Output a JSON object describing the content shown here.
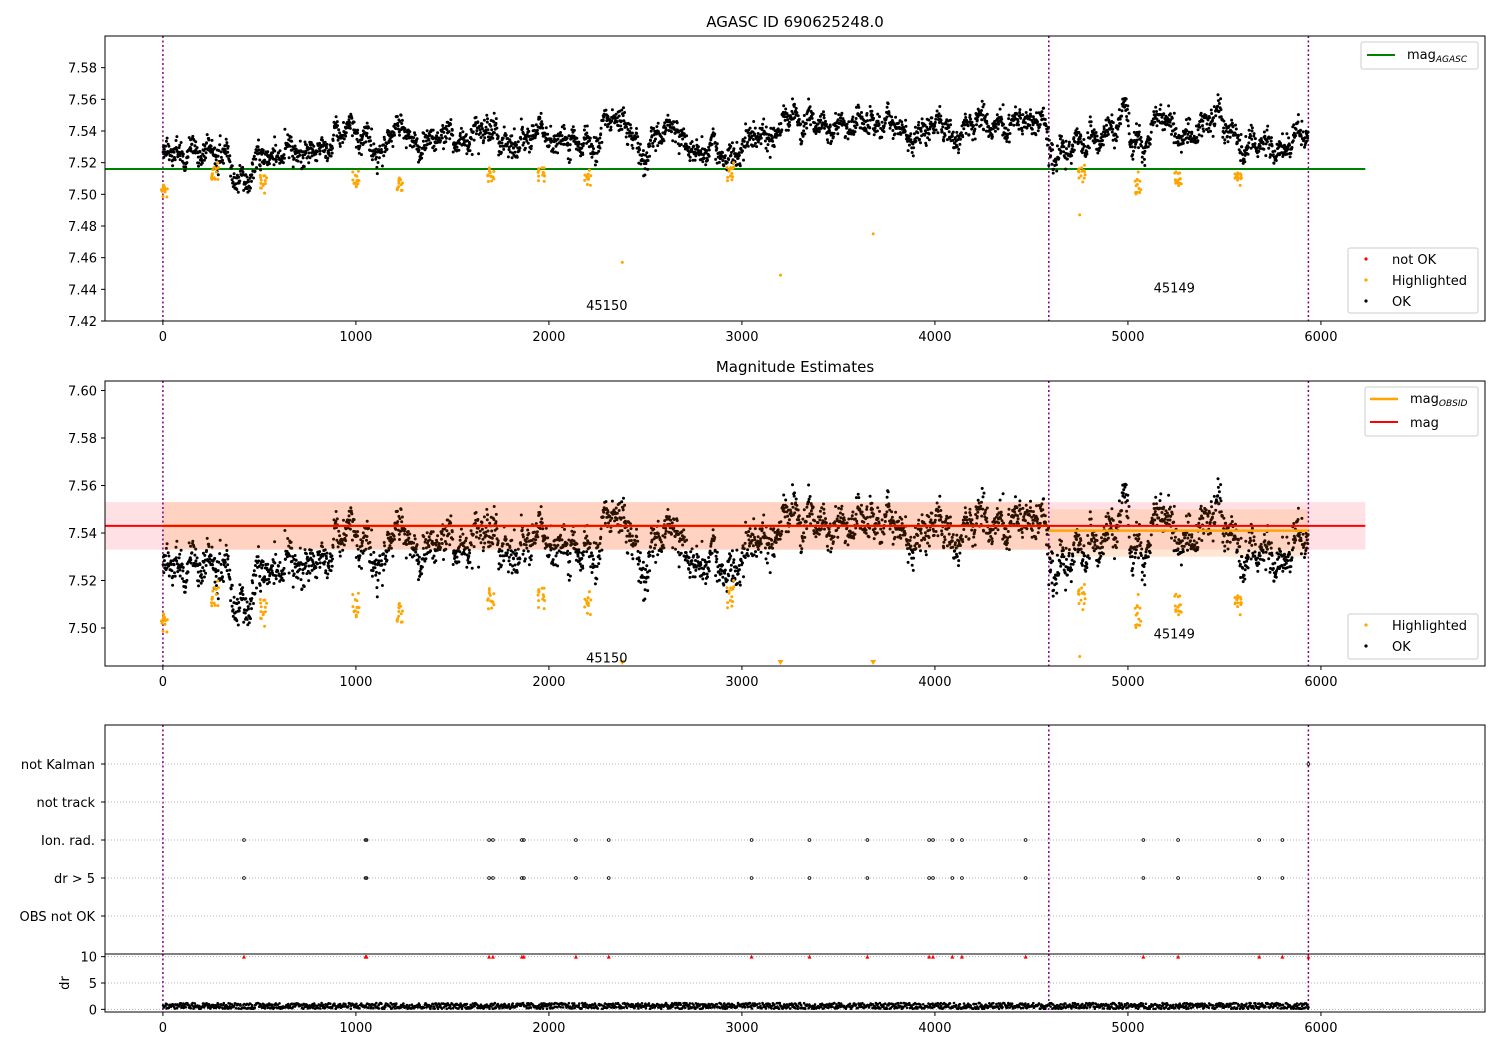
{
  "chart_data": [
    {
      "type": "scatter",
      "title": "AGASC ID 690625248.0",
      "xlabel": "",
      "ylabel": "",
      "xlim": [
        -300,
        6850
      ],
      "ylim": [
        7.42,
        7.6
      ],
      "xticks": [
        0,
        1000,
        2000,
        3000,
        4000,
        5000,
        6000
      ],
      "yticks": [
        7.42,
        7.44,
        7.46,
        7.48,
        7.5,
        7.52,
        7.54,
        7.56,
        7.58
      ],
      "vlines": [
        0,
        4590,
        5935
      ],
      "annotations": [
        {
          "text": "45150",
          "x": 2300,
          "y": 7.427
        },
        {
          "text": "45149",
          "x": 5240,
          "y": 7.438
        }
      ],
      "series": [
        {
          "name": "mag_AGASC",
          "kind": "line",
          "color": "#008000",
          "x": [
            -300,
            6230
          ],
          "y": [
            7.516,
            7.516
          ]
        },
        {
          "name": "not OK",
          "kind": "points",
          "color": "#ff0000",
          "x": [],
          "y": []
        },
        {
          "name": "Highlighted",
          "kind": "points",
          "color": "#ffa500",
          "x": [
            2380,
            3200,
            3680,
            4750
          ],
          "y": [
            7.457,
            7.449,
            7.475,
            7.487
          ]
        },
        {
          "name": "OK",
          "kind": "points",
          "color": "#000000",
          "segments": [
            {
              "x0": 0,
              "x1": 4590,
              "baseline": 7.525,
              "rise": 0.02,
              "spread": 0.008
            },
            {
              "x0": 4590,
              "x1": 5935,
              "baseline": 7.528,
              "rise": 0.012,
              "spread": 0.008
            }
          ]
        }
      ],
      "highlight_clusters": [
        {
          "x": 10,
          "y": 7.503
        },
        {
          "x": 270,
          "y": 7.514
        },
        {
          "x": 520,
          "y": 7.508
        },
        {
          "x": 1000,
          "y": 7.507
        },
        {
          "x": 1230,
          "y": 7.506
        },
        {
          "x": 1700,
          "y": 7.514
        },
        {
          "x": 1960,
          "y": 7.512
        },
        {
          "x": 2200,
          "y": 7.511
        },
        {
          "x": 2940,
          "y": 7.514
        },
        {
          "x": 4760,
          "y": 7.514
        },
        {
          "x": 5050,
          "y": 7.505
        },
        {
          "x": 5260,
          "y": 7.509
        },
        {
          "x": 5570,
          "y": 7.511
        }
      ],
      "legend": [
        {
          "placement": "top-right",
          "entries": [
            "mag_AGASC"
          ]
        },
        {
          "placement": "bottom-right",
          "entries": [
            "not OK",
            "Highlighted",
            "OK"
          ]
        }
      ]
    },
    {
      "type": "scatter",
      "title": "Magnitude Estimates",
      "xlabel": "",
      "ylabel": "",
      "xlim": [
        -300,
        6850
      ],
      "ylim": [
        7.484,
        7.604
      ],
      "xticks": [
        0,
        1000,
        2000,
        3000,
        4000,
        5000,
        6000
      ],
      "yticks": [
        7.5,
        7.52,
        7.54,
        7.56,
        7.58,
        7.6
      ],
      "vlines": [
        0,
        4590,
        5935
      ],
      "annotations": [
        {
          "text": "45150",
          "x": 2300,
          "y": 7.4855
        },
        {
          "text": "45149",
          "x": 5240,
          "y": 7.4955
        }
      ],
      "bands": [
        {
          "x0": -300,
          "x1": 6230,
          "y0": 7.533,
          "y1": 7.553,
          "color": "#ff9aa8"
        },
        {
          "x0": 0,
          "x1": 4590,
          "y0": 7.533,
          "y1": 7.553,
          "color": "#ffb06e"
        },
        {
          "x0": 4590,
          "x1": 5935,
          "y0": 7.53,
          "y1": 7.55,
          "color": "#ffb06e"
        }
      ],
      "series": [
        {
          "name": "mag_OBSID",
          "kind": "steps",
          "color": "#ffa500",
          "segments": [
            {
              "x0": 0,
              "x1": 4590,
              "y": 7.543
            },
            {
              "x0": 4590,
              "x1": 5935,
              "y": 7.541
            }
          ]
        },
        {
          "name": "mag",
          "kind": "line",
          "color": "#ff0000",
          "x": [
            -300,
            6230
          ],
          "y": [
            7.543,
            7.543
          ]
        },
        {
          "name": "Highlighted",
          "kind": "points",
          "color": "#ffa500",
          "x": [
            4750
          ],
          "y": [
            7.488
          ]
        },
        {
          "name": "OK",
          "kind": "points",
          "color": "#000000"
        }
      ],
      "offscale_markers": [
        {
          "x": 2380
        },
        {
          "x": 3200
        },
        {
          "x": 3680
        }
      ],
      "legend": [
        {
          "placement": "top-right",
          "entries": [
            "mag_OBSID",
            "mag"
          ]
        },
        {
          "placement": "bottom-right",
          "entries": [
            "Highlighted",
            "OK"
          ]
        }
      ]
    },
    {
      "type": "scatter",
      "title": "",
      "xlim": [
        -300,
        6850
      ],
      "categories": [
        "OBS not OK",
        "dr > 5",
        "Ion. rad.",
        "not track",
        "not Kalman"
      ],
      "vlines": [
        0,
        4590,
        5935
      ],
      "series": [
        {
          "name": "Ion. rad.",
          "x": [
            420,
            1050,
            1055,
            1690,
            1710,
            1860,
            1870,
            2140,
            2310,
            3050,
            3350,
            3650,
            3970,
            3990,
            4090,
            4140,
            4470,
            5080,
            5260,
            5680,
            5800
          ]
        },
        {
          "name": "dr > 5",
          "x": [
            420,
            1050,
            1055,
            1690,
            1710,
            1860,
            1870,
            2140,
            2310,
            3050,
            3350,
            3650,
            3970,
            3990,
            4090,
            4140,
            4470,
            5080,
            5260,
            5680,
            5800
          ]
        },
        {
          "name": "not Kalman",
          "x": [
            5935
          ]
        }
      ]
    },
    {
      "type": "scatter",
      "title": "",
      "ylabel": "dr",
      "xlim": [
        -300,
        6850
      ],
      "ylim": [
        -0.5,
        10.5
      ],
      "xticks": [
        0,
        1000,
        2000,
        3000,
        4000,
        5000,
        6000
      ],
      "yticks": [
        0,
        5,
        10
      ],
      "vlines": [
        0,
        4590,
        5935
      ],
      "series": [
        {
          "name": "dr",
          "kind": "points",
          "color": "#000000",
          "x0": 0,
          "x1": 5935,
          "y_range": [
            0.1,
            1.2
          ]
        },
        {
          "name": "dr clipped",
          "kind": "triangles",
          "color": "#ff0000",
          "y": 10,
          "x": [
            420,
            1050,
            1055,
            1690,
            1710,
            1860,
            1870,
            2140,
            2310,
            3050,
            3350,
            3650,
            3970,
            3990,
            4090,
            4140,
            4470,
            5080,
            5260,
            5680,
            5800,
            5935
          ]
        }
      ]
    }
  ],
  "legend_labels": {
    "mag_agasc_main": "mag",
    "mag_agasc_sub": "AGASC",
    "mag_obsid_main": "mag",
    "mag_obsid_sub": "OBSID",
    "mag": "mag",
    "not_ok": "not OK",
    "highlighted": "Highlighted",
    "ok": "OK"
  },
  "colors": {
    "ok": "#000000",
    "highlighted": "#ffa500",
    "not_ok": "#ff0000",
    "agasc_line": "#008000",
    "mag_line": "#ff0000",
    "obsid_line": "#ffa500",
    "vline": "#800080"
  }
}
